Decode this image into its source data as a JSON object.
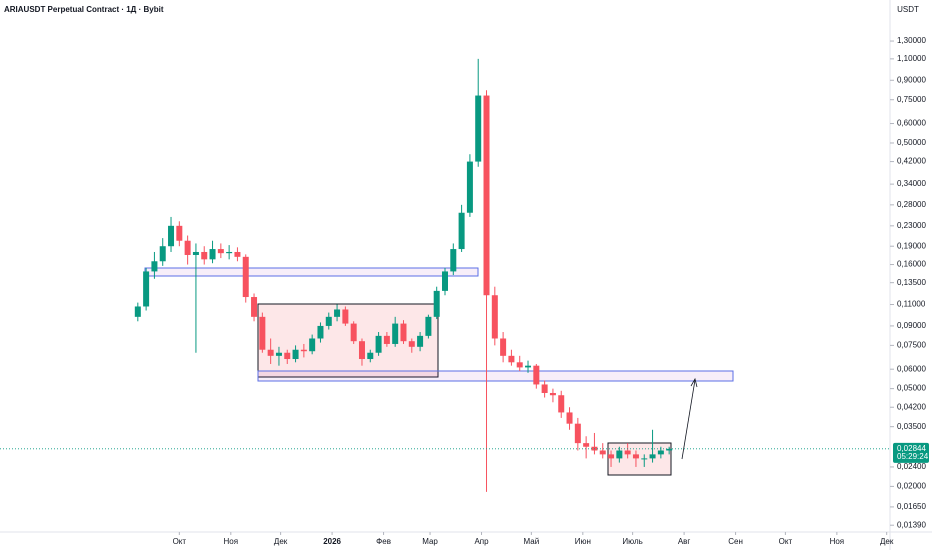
{
  "chart_data": {
    "type": "candlestick",
    "title": "ARIAUSDT Perpetual Contract · 1Д · Bybit",
    "currency": "USDT",
    "log_scale": true,
    "up_color": "#089981",
    "down_color": "#f7525f",
    "xlim": [
      -78,
      458
    ],
    "xticks": [
      {
        "value": 30,
        "label": "Окт"
      },
      {
        "value": 61,
        "label": "Ноя"
      },
      {
        "value": 91,
        "label": "Дек"
      },
      {
        "value": 122,
        "label": "2026"
      },
      {
        "value": 153,
        "label": "Фев"
      },
      {
        "value": 181,
        "label": "Мар"
      },
      {
        "value": 212,
        "label": "Апр"
      },
      {
        "value": 242,
        "label": "Май"
      },
      {
        "value": 273,
        "label": "Июн"
      },
      {
        "value": 303,
        "label": "Июль"
      },
      {
        "value": 334,
        "label": "Авг"
      },
      {
        "value": 365,
        "label": "Сен"
      },
      {
        "value": 395,
        "label": "Окт"
      },
      {
        "value": 426,
        "label": "Ноя"
      },
      {
        "value": 456,
        "label": "Дек"
      }
    ],
    "ylim": [
      0.0121,
      1.91
    ],
    "yticks": [
      {
        "value": 1.3,
        "label": "1,30000"
      },
      {
        "value": 1.1,
        "label": "1,10000"
      },
      {
        "value": 0.9,
        "label": "0,90000"
      },
      {
        "value": 0.75,
        "label": "0,75000"
      },
      {
        "value": 0.6,
        "label": "0,60000"
      },
      {
        "value": 0.5,
        "label": "0,50000"
      },
      {
        "value": 0.42,
        "label": "0,42000"
      },
      {
        "value": 0.34,
        "label": "0,34000"
      },
      {
        "value": 0.28,
        "label": "0,28000"
      },
      {
        "value": 0.23,
        "label": "0,23000"
      },
      {
        "value": 0.19,
        "label": "0,19000"
      },
      {
        "value": 0.16,
        "label": "0,16000"
      },
      {
        "value": 0.135,
        "label": "0,13500"
      },
      {
        "value": 0.11,
        "label": "0,11000"
      },
      {
        "value": 0.09,
        "label": "0,09000"
      },
      {
        "value": 0.075,
        "label": "0,07500"
      },
      {
        "value": 0.06,
        "label": "0,06000"
      },
      {
        "value": 0.05,
        "label": "0,05000"
      },
      {
        "value": 0.042,
        "label": "0,04200"
      },
      {
        "value": 0.035,
        "label": "0,03500"
      },
      {
        "value": 0.024,
        "label": "0,02400"
      },
      {
        "value": 0.02,
        "label": "0,02000"
      },
      {
        "value": 0.0165,
        "label": "0,01650"
      },
      {
        "value": 0.0139,
        "label": "0,01390"
      }
    ],
    "last_price": {
      "value": 0.02844,
      "label": "0,02844"
    },
    "countdown": "05:29:24",
    "x": [
      5,
      10,
      15,
      20,
      25,
      30,
      35,
      40,
      45,
      50,
      55,
      60,
      65,
      70,
      75,
      80,
      85,
      90,
      95,
      100,
      105,
      110,
      115,
      120,
      125,
      130,
      135,
      140,
      145,
      150,
      155,
      160,
      165,
      170,
      175,
      180,
      185,
      190,
      195,
      200,
      205,
      210,
      215,
      220,
      225,
      230,
      235,
      240,
      245,
      250,
      255,
      260,
      265,
      270,
      275,
      280,
      285,
      290,
      295,
      300,
      305,
      310,
      315,
      320,
      325
    ],
    "open": [
      0.098,
      0.108,
      0.15,
      0.165,
      0.19,
      0.23,
      0.2,
      0.175,
      0.18,
      0.168,
      0.185,
      0.178,
      0.18,
      0.172,
      0.118,
      0.098,
      0.072,
      0.068,
      0.07,
      0.066,
      0.072,
      0.071,
      0.08,
      0.09,
      0.098,
      0.105,
      0.092,
      0.078,
      0.066,
      0.07,
      0.082,
      0.076,
      0.092,
      0.078,
      0.074,
      0.082,
      0.098,
      0.125,
      0.15,
      0.185,
      0.26,
      0.42,
      0.78,
      0.12,
      0.08,
      0.068,
      0.064,
      0.061,
      0.062,
      0.052,
      0.048,
      0.047,
      0.04,
      0.036,
      0.03,
      0.029,
      0.028,
      0.027,
      0.026,
      0.028,
      0.027,
      0.026,
      0.026,
      0.027,
      0.028
    ],
    "high": [
      0.112,
      0.155,
      0.18,
      0.205,
      0.25,
      0.24,
      0.21,
      0.195,
      0.19,
      0.2,
      0.195,
      0.192,
      0.188,
      0.176,
      0.122,
      0.102,
      0.08,
      0.074,
      0.072,
      0.075,
      0.076,
      0.083,
      0.093,
      0.102,
      0.11,
      0.108,
      0.094,
      0.08,
      0.072,
      0.085,
      0.085,
      0.098,
      0.095,
      0.08,
      0.085,
      0.1,
      0.13,
      0.155,
      0.195,
      0.28,
      0.45,
      1.1,
      0.82,
      0.13,
      0.085,
      0.072,
      0.068,
      0.065,
      0.063,
      0.054,
      0.05,
      0.049,
      0.042,
      0.038,
      0.032,
      0.033,
      0.03,
      0.028,
      0.029,
      0.03,
      0.028,
      0.027,
      0.034,
      0.029,
      0.029
    ],
    "low": [
      0.094,
      0.104,
      0.14,
      0.158,
      0.18,
      0.19,
      0.16,
      0.07,
      0.16,
      0.162,
      0.17,
      0.168,
      0.165,
      0.112,
      0.094,
      0.07,
      0.063,
      0.062,
      0.063,
      0.064,
      0.067,
      0.069,
      0.077,
      0.087,
      0.094,
      0.09,
      0.076,
      0.062,
      0.064,
      0.068,
      0.074,
      0.074,
      0.076,
      0.07,
      0.071,
      0.08,
      0.096,
      0.12,
      0.145,
      0.18,
      0.25,
      0.4,
      0.019,
      0.075,
      0.064,
      0.062,
      0.059,
      0.058,
      0.05,
      0.046,
      0.044,
      0.038,
      0.034,
      0.028,
      0.026,
      0.027,
      0.026,
      0.024,
      0.025,
      0.026,
      0.024,
      0.024,
      0.025,
      0.026,
      0.027
    ],
    "close": [
      0.108,
      0.15,
      0.165,
      0.19,
      0.23,
      0.2,
      0.175,
      0.18,
      0.168,
      0.185,
      0.178,
      0.18,
      0.172,
      0.118,
      0.098,
      0.072,
      0.068,
      0.07,
      0.066,
      0.072,
      0.071,
      0.08,
      0.09,
      0.098,
      0.105,
      0.092,
      0.078,
      0.066,
      0.07,
      0.082,
      0.076,
      0.092,
      0.078,
      0.074,
      0.082,
      0.098,
      0.125,
      0.15,
      0.185,
      0.26,
      0.42,
      0.78,
      0.12,
      0.08,
      0.068,
      0.064,
      0.061,
      0.062,
      0.052,
      0.048,
      0.047,
      0.04,
      0.036,
      0.03,
      0.029,
      0.028,
      0.027,
      0.026,
      0.028,
      0.027,
      0.026,
      0.026,
      0.027,
      0.028,
      0.02844
    ]
  }
}
